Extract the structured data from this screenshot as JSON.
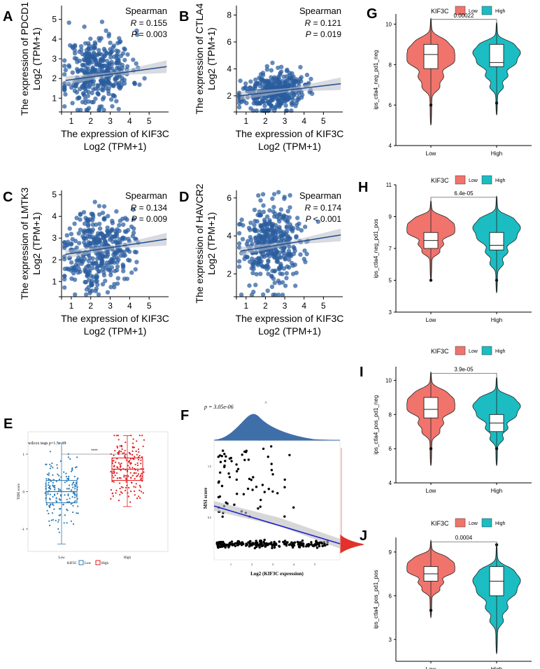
{
  "colors": {
    "scatter_point": "#2a5d9e",
    "scatter_line": "#1f4e8c",
    "violin_low": "#f0746c",
    "violin_high": "#1bbdc2",
    "tide_low": "#2c7bb6",
    "tide_high": "#e31a1c",
    "density": "#3f6fa8",
    "regression_f": "#1f1fd0",
    "density_right": "#e3322b"
  },
  "chart_data": [
    {
      "panel": "A",
      "type": "scatter",
      "xlabel": "The expression of KIF3C",
      "xlabel2": "Log2 (TPM+1)",
      "ylabel": "The expression of PDCD1",
      "ylabel2": "Log2 (TPM+1)",
      "xlim": [
        0.5,
        6
      ],
      "ylim": [
        0.3,
        5.7
      ],
      "xticks": [
        "1",
        "2",
        "3",
        "4",
        "5"
      ],
      "yticks": [
        "1",
        "2",
        "3",
        "4",
        "5"
      ],
      "stat_title": "Spearman",
      "r_text": "= 0.155",
      "p_text": "= 0.003",
      "fit": [
        [
          0.7,
          1.9
        ],
        [
          5.9,
          2.6
        ]
      ],
      "n_points": 380,
      "mean": [
        2.4,
        2.4
      ],
      "sd": [
        0.85,
        0.9
      ],
      "seed": 11
    },
    {
      "panel": "B",
      "type": "scatter",
      "xlabel": "The expression of KIF3C",
      "xlabel2": "Log2 (TPM+1)",
      "ylabel": "The expression of CTLA4",
      "ylabel2": "Log2 (TPM+1)",
      "xlim": [
        0.5,
        6
      ],
      "ylim": [
        0.8,
        8.7
      ],
      "xticks": [
        "1",
        "2",
        "3",
        "4",
        "5"
      ],
      "yticks": [
        "2",
        "4",
        "6",
        "8"
      ],
      "stat_title": "Spearman",
      "r_text": "= 0.121",
      "p_text": "= 0.019",
      "fit": [
        [
          0.7,
          2.0
        ],
        [
          5.9,
          2.9
        ]
      ],
      "n_points": 380,
      "mean": [
        2.4,
        2.3
      ],
      "sd": [
        0.8,
        0.7
      ],
      "seed": 23
    },
    {
      "panel": "C",
      "type": "scatter",
      "xlabel": "The expression of KIF3C",
      "xlabel2": "Log2 (TPM+1)",
      "ylabel": "The expression of LMTK3",
      "ylabel2": "Log2 (TPM+1)",
      "xlim": [
        0.5,
        6
      ],
      "ylim": [
        0.3,
        5.2
      ],
      "xticks": [
        "1",
        "2",
        "3",
        "4",
        "5"
      ],
      "yticks": [
        "1",
        "2",
        "3",
        "4",
        "5"
      ],
      "stat_title": "Spearman",
      "r_text": "= 0.134",
      "p_text": "= 0.009",
      "fit": [
        [
          0.7,
          2.25
        ],
        [
          5.9,
          2.95
        ]
      ],
      "n_points": 380,
      "mean": [
        2.4,
        2.5
      ],
      "sd": [
        0.85,
        0.9
      ],
      "seed": 37
    },
    {
      "panel": "D",
      "type": "scatter",
      "xlabel": "The expression of KIF3C",
      "xlabel2": "Log2 (TPM+1)",
      "ylabel": "The expression of HAVCR2",
      "ylabel2": "Log2 (TPM+1)",
      "xlim": [
        0.5,
        6
      ],
      "ylim": [
        0.8,
        6.4
      ],
      "xticks": [
        "1",
        "2",
        "3",
        "4",
        "5"
      ],
      "yticks": [
        "2",
        "4",
        "6"
      ],
      "stat_title": "Spearman",
      "r_text": "= 0.174",
      "p_text": "< 0.001",
      "fit": [
        [
          0.7,
          3.2
        ],
        [
          5.9,
          4.05
        ]
      ],
      "n_points": 380,
      "mean": [
        2.4,
        3.5
      ],
      "sd": [
        0.85,
        1.1
      ],
      "seed": 53
    },
    {
      "panel": "E",
      "type": "box",
      "title": "wilcox tests p=1.5e-19",
      "signif": "****",
      "ylabel": "TIDE score",
      "xlabel": "",
      "categories": [
        "Low",
        "High"
      ],
      "legend_title": "KIF3C",
      "legend": [
        "Low",
        "High"
      ],
      "yticks": [
        "1",
        "0",
        "-1"
      ],
      "ylim": [
        -1.6,
        1.6
      ],
      "boxes": [
        {
          "min": -1.4,
          "q1": -0.3,
          "median": 0.0,
          "q3": 0.3,
          "max": 1.3
        },
        {
          "min": -0.4,
          "q1": 0.3,
          "median": 0.6,
          "q3": 0.9,
          "max": 1.5
        }
      ]
    },
    {
      "panel": "F",
      "type": "scatter",
      "p_text": "p = 3.05e-06",
      "xlabel": "Log2 (KIF3C expression)",
      "ylabel": "MSI score",
      "yticks": [
        "1.5",
        "0.5"
      ],
      "xticks": [
        "1",
        "2",
        "3",
        "4",
        "5"
      ]
    },
    {
      "panel": "G",
      "type": "violin",
      "legend_title": "KIF3C",
      "legend": [
        "Low",
        "High"
      ],
      "categories": [
        "Low",
        "High"
      ],
      "ylabel": "ips_ctla4_neg_pd1_neg",
      "yticks": [
        "10",
        "8",
        "6",
        "4"
      ],
      "ylim": [
        4,
        10.5
      ],
      "pvalue": "0.00022",
      "groups": [
        {
          "q1": 7.8,
          "median": 8.5,
          "q3": 9.0,
          "min": 5.0,
          "max": 10.3,
          "outlier": 6.0
        },
        {
          "q1": 7.9,
          "median": 8.1,
          "q3": 9.0,
          "min": 5.5,
          "max": 10.1,
          "outlier": 6.1
        }
      ]
    },
    {
      "panel": "H",
      "type": "violin",
      "legend_title": "KIF3C",
      "legend": [
        "Low",
        "High"
      ],
      "categories": [
        "Low",
        "High"
      ],
      "ylabel": "ips_ctla4_neg_pd1_pos",
      "yticks": [
        "11",
        "9",
        "7",
        "5",
        "3"
      ],
      "ylim": [
        3,
        11
      ],
      "pvalue": "6.4e-05",
      "groups": [
        {
          "q1": 7.0,
          "median": 7.5,
          "q3": 8.0,
          "min": 5.0,
          "max": 10.0,
          "outlier": 5.0
        },
        {
          "q1": 6.9,
          "median": 7.2,
          "q3": 8.0,
          "min": 4.2,
          "max": 10.3,
          "outlier": 5.0
        }
      ]
    },
    {
      "panel": "I",
      "type": "violin",
      "legend_title": "KIF3C",
      "legend": [
        "Low",
        "High"
      ],
      "categories": [
        "Low",
        "High"
      ],
      "ylabel": "ips_ctla4_pos_pd1_neg",
      "yticks": [
        "10",
        "8",
        "6",
        "4"
      ],
      "ylim": [
        4,
        10.8
      ],
      "pvalue": "3.9e-05",
      "groups": [
        {
          "q1": 7.8,
          "median": 8.3,
          "q3": 9.0,
          "min": 5.0,
          "max": 10.5,
          "outlier": 6.0
        },
        {
          "q1": 7.0,
          "median": 7.5,
          "q3": 8.0,
          "min": 5.0,
          "max": 10.2,
          "outlier": 6.0
        }
      ]
    },
    {
      "panel": "J",
      "type": "violin",
      "legend_title": "KIF3C",
      "legend": [
        "Low",
        "High"
      ],
      "categories": [
        "Low",
        "High"
      ],
      "ylabel": "ips_ctla4_pos_pd1_pos",
      "yticks": [
        "9",
        "6",
        "3"
      ],
      "ylim": [
        1.5,
        10
      ],
      "pvalue": "0.0004",
      "groups": [
        {
          "q1": 7.0,
          "median": 7.5,
          "q3": 8.0,
          "min": 4.5,
          "max": 9.8,
          "outlier": 5.0
        },
        {
          "q1": 6.0,
          "median": 7.0,
          "q3": 8.0,
          "min": 2.0,
          "max": 9.5,
          "outlier": 9.5
        }
      ]
    }
  ],
  "panel_letters": [
    "A",
    "B",
    "C",
    "D",
    "E",
    "F",
    "G",
    "H",
    "I",
    "J"
  ]
}
